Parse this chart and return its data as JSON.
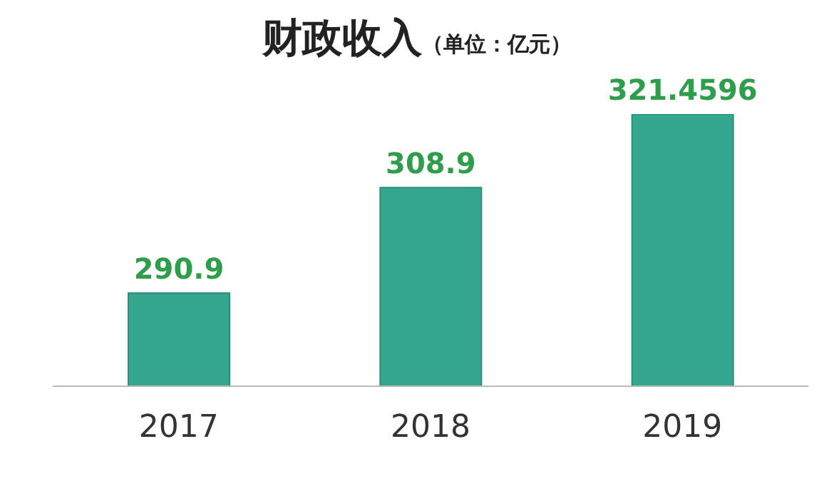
{
  "chart_data": {
    "type": "bar",
    "title": "财政收入",
    "subtitle": "（单位：亿元）",
    "categories": [
      "2017",
      "2018",
      "2019"
    ],
    "values": [
      290.9,
      308.9,
      321.4596
    ],
    "color": "#35a78f",
    "ylim": [
      275,
      321.4596
    ],
    "tick_labels": "x",
    "data_labels": true,
    "grid": false,
    "legend": false
  }
}
